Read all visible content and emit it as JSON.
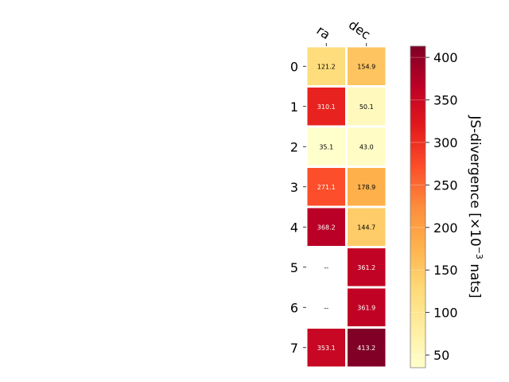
{
  "chart_data": {
    "type": "heatmap",
    "title": "",
    "columns": [
      "ra",
      "dec"
    ],
    "rows": [
      "0",
      "1",
      "2",
      "3",
      "4",
      "5",
      "6",
      "7"
    ],
    "values": [
      [
        121.2,
        154.9
      ],
      [
        310.1,
        50.1
      ],
      [
        35.1,
        43.0
      ],
      [
        271.1,
        178.9
      ],
      [
        368.2,
        144.7
      ],
      [
        null,
        361.2
      ],
      [
        null,
        361.9
      ],
      [
        353.1,
        413.2
      ]
    ],
    "cell_labels": [
      [
        "121.2",
        "154.9"
      ],
      [
        "310.1",
        "50.1"
      ],
      [
        "35.1",
        "43.0"
      ],
      [
        "271.1",
        "178.9"
      ],
      [
        "368.2",
        "144.7"
      ],
      [
        "--",
        "361.2"
      ],
      [
        "--",
        "361.9"
      ],
      [
        "353.1",
        "413.2"
      ]
    ],
    "colorbar": {
      "label": "JS-divergence [×10",
      "label_exponent": "−3",
      "label_suffix": " nats]",
      "ticks": [
        50,
        100,
        150,
        200,
        250,
        300,
        350,
        400
      ],
      "tick_labels": [
        "50",
        "100",
        "150",
        "200",
        "250",
        "300",
        "350",
        "400"
      ],
      "range": [
        35.1,
        413.2
      ],
      "colormap": "YlOrRd"
    },
    "colors": {
      "missing_cell": "#ffffff",
      "cell_border": "#ffffff"
    }
  }
}
